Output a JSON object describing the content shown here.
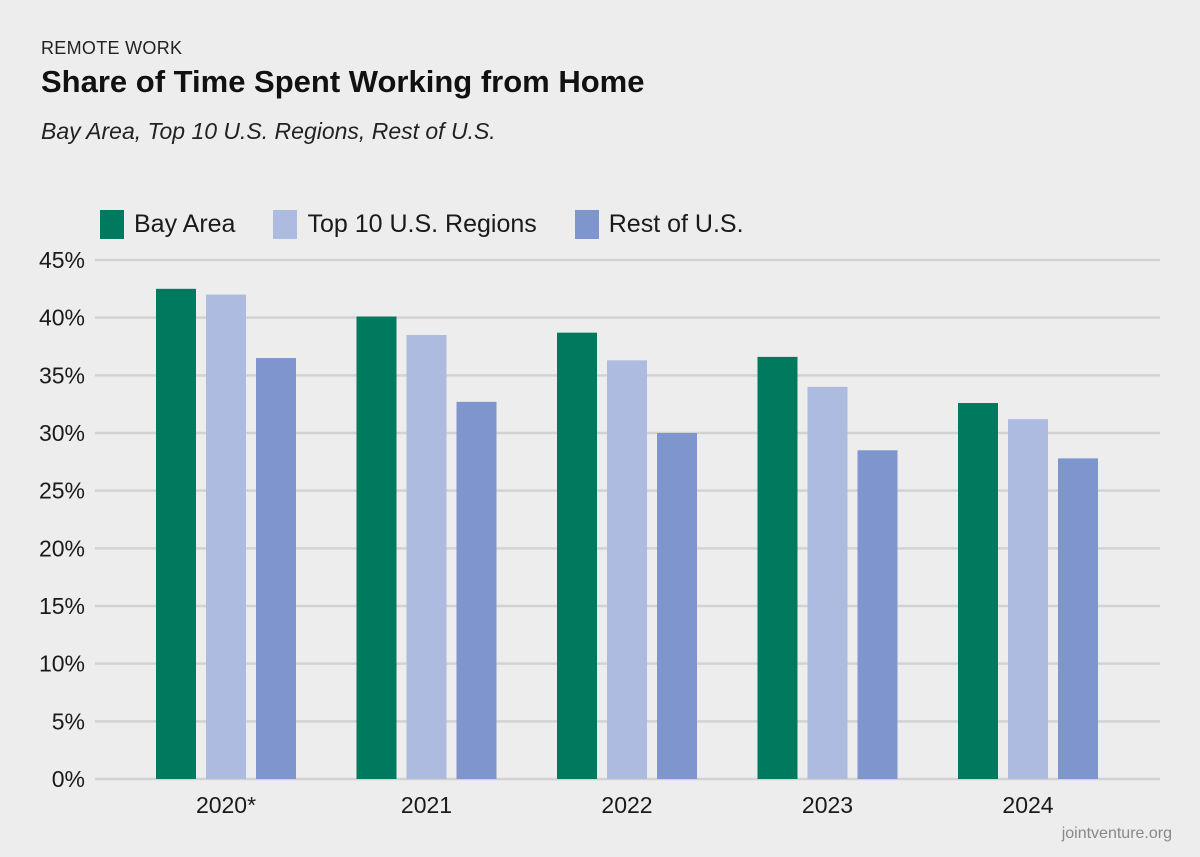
{
  "header": {
    "kicker": "REMOTE WORK",
    "title": "Share of Time Spent Working from Home",
    "subtitle": "Bay Area, Top 10 U.S. Regions, Rest of U.S."
  },
  "footer": {
    "source": "jointventure.org"
  },
  "chart_data": {
    "type": "bar",
    "title": "Share of Time Spent Working from Home",
    "subtitle": "Bay Area, Top 10 U.S. Regions, Rest of U.S.",
    "xlabel": "",
    "ylabel": "",
    "categories": [
      "2020*",
      "2021",
      "2022",
      "2023",
      "2024"
    ],
    "series": [
      {
        "name": "Bay Area",
        "color": "#007a5e",
        "values": [
          42.5,
          40.1,
          38.7,
          36.6,
          32.6
        ]
      },
      {
        "name": "Top 10 U.S. Regions",
        "color": "#aebbe0",
        "values": [
          42.0,
          38.5,
          36.3,
          34.0,
          31.2
        ]
      },
      {
        "name": "Rest of U.S.",
        "color": "#7f95cd",
        "values": [
          36.5,
          32.7,
          30.0,
          28.5,
          27.8
        ]
      }
    ],
    "ylim": [
      0,
      45
    ],
    "yticks": [
      0,
      5,
      10,
      15,
      20,
      25,
      30,
      35,
      40,
      45
    ],
    "ytick_labels": [
      "0%",
      "5%",
      "10%",
      "15%",
      "20%",
      "25%",
      "30%",
      "35%",
      "40%",
      "45%"
    ],
    "grid": true,
    "legend_position": "top-left"
  }
}
